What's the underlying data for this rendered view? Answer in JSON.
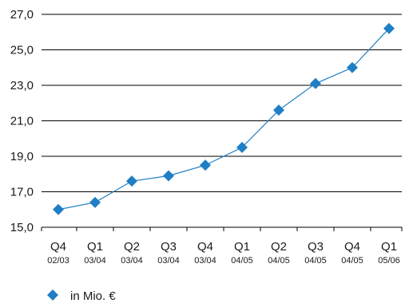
{
  "chart_data": {
    "type": "line",
    "categories": [
      {
        "quarter": "Q4",
        "period": "02/03"
      },
      {
        "quarter": "Q1",
        "period": "03/04"
      },
      {
        "quarter": "Q2",
        "period": "03/04"
      },
      {
        "quarter": "Q3",
        "period": "03/04"
      },
      {
        "quarter": "Q4",
        "period": "03/04"
      },
      {
        "quarter": "Q1",
        "period": "04/05"
      },
      {
        "quarter": "Q2",
        "period": "04/05"
      },
      {
        "quarter": "Q3",
        "period": "04/05"
      },
      {
        "quarter": "Q4",
        "period": "04/05"
      },
      {
        "quarter": "Q1",
        "period": "05/06"
      }
    ],
    "series": [
      {
        "name": "in Mio. €",
        "values": [
          16.0,
          16.4,
          17.6,
          17.9,
          18.5,
          19.5,
          21.6,
          23.1,
          24.0,
          26.2
        ],
        "color": "#1f7fc4"
      }
    ],
    "yticks": [
      "15,0",
      "17,0",
      "19,0",
      "21,0",
      "23,0",
      "25,0",
      "27,0"
    ],
    "ylim": [
      15,
      27
    ],
    "grid": true,
    "legend_position": "bottom-left"
  }
}
